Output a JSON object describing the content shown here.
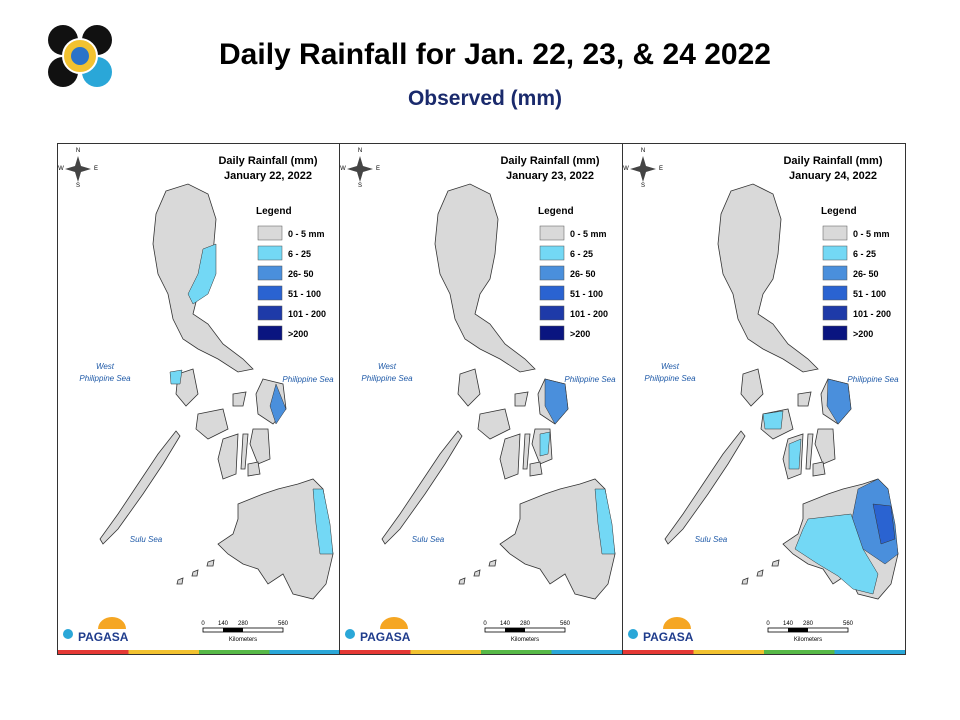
{
  "header": {
    "title": "Daily Rainfall for Jan. 22, 23, & 24 2022",
    "subtitle": "Observed (mm)"
  },
  "panels": [
    {
      "title": "Daily Rainfall (mm)",
      "date": "January 22, 2022",
      "legend_title": "Legend",
      "legend": [
        {
          "label": "0 - 5 mm",
          "color": "#d9d9d9"
        },
        {
          "label": "6 - 25",
          "color": "#73d8f5"
        },
        {
          "label": "26- 50",
          "color": "#4a8fdc"
        },
        {
          "label": "51 - 100",
          "color": "#2a63d1"
        },
        {
          "label": "101 - 200",
          "color": "#1e3aa8"
        },
        {
          "label": ">200",
          "color": "#0a1580"
        }
      ],
      "west_sea": [
        "West",
        "Philippine Sea"
      ],
      "east_sea": "Philippine Sea",
      "south_sea": "Sulu Sea",
      "compass": [
        "N",
        "E",
        "S",
        "W"
      ],
      "scale": {
        "ticks": [
          0,
          140,
          280,
          560
        ],
        "unit": "Kilometers"
      },
      "logo": "PAGASA"
    },
    {
      "title": "Daily Rainfall (mm)",
      "date": "January 23, 2022",
      "legend_title": "Legend",
      "legend": [
        {
          "label": "0 - 5 mm",
          "color": "#d9d9d9"
        },
        {
          "label": "6 - 25",
          "color": "#73d8f5"
        },
        {
          "label": "26- 50",
          "color": "#4a8fdc"
        },
        {
          "label": "51 - 100",
          "color": "#2a63d1"
        },
        {
          "label": "101 - 200",
          "color": "#1e3aa8"
        },
        {
          "label": ">200",
          "color": "#0a1580"
        }
      ],
      "west_sea": [
        "West",
        "Philippine Sea"
      ],
      "east_sea": "Philippine Sea",
      "south_sea": "Sulu Sea",
      "compass": [
        "N",
        "E",
        "S",
        "W"
      ],
      "scale": {
        "ticks": [
          0,
          140,
          280,
          560
        ],
        "unit": "Kilometers"
      },
      "logo": "PAGASA"
    },
    {
      "title": "Daily Rainfall (mm)",
      "date": "January 24, 2022",
      "legend_title": "Legend",
      "legend": [
        {
          "label": "0 - 5 mm",
          "color": "#d9d9d9"
        },
        {
          "label": "6 - 25",
          "color": "#73d8f5"
        },
        {
          "label": "26- 50",
          "color": "#4a8fdc"
        },
        {
          "label": "51 - 100",
          "color": "#2a63d1"
        },
        {
          "label": "101 - 200",
          "color": "#1e3aa8"
        },
        {
          "label": ">200",
          "color": "#0a1580"
        }
      ],
      "west_sea": [
        "West",
        "Philippine Sea"
      ],
      "east_sea": "Philippine Sea",
      "south_sea": "Sulu Sea",
      "compass": [
        "N",
        "E",
        "S",
        "W"
      ],
      "scale": {
        "ticks": [
          0,
          140,
          280,
          560
        ],
        "unit": "Kilometers"
      },
      "logo": "PAGASA"
    }
  ]
}
